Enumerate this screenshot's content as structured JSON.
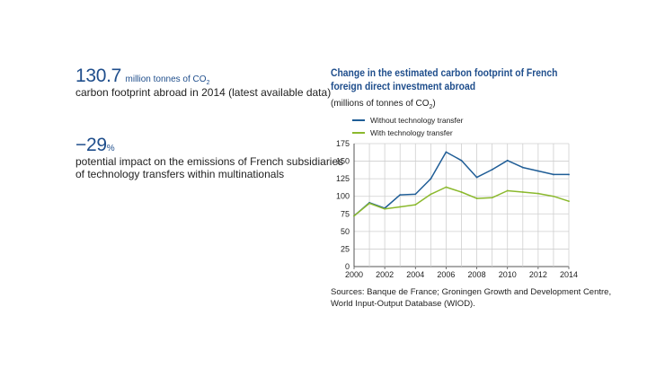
{
  "stats": [
    {
      "value": "130.7",
      "unit": "million tonnes of CO",
      "unit_sub": "2",
      "text": "carbon footprint abroad in 2014 (latest available data)"
    },
    {
      "value": "−29",
      "unit": "%",
      "text_line1": "potential impact on the emissions of French subsidiaries",
      "text_line2": "of technology transfers within multinationals"
    }
  ],
  "chart_data": {
    "type": "line",
    "title": "Change in the estimated carbon footprint of French foreign direct investment abroad",
    "ylabel": "(millions of tonnes of CO",
    "ylabel_sub": "2",
    "ylabel_end": ")",
    "xlabel": "",
    "x": [
      2000,
      2001,
      2002,
      2003,
      2004,
      2005,
      2006,
      2007,
      2008,
      2009,
      2010,
      2011,
      2012,
      2013,
      2014
    ],
    "series": [
      {
        "name": "Without technology transfer",
        "color": "#1f5d96",
        "values": [
          72,
          91,
          83,
          102,
          103,
          125,
          163,
          151,
          127,
          138,
          151,
          141,
          136,
          131,
          131
        ]
      },
      {
        "name": "With technology transfer",
        "color": "#8bb92d",
        "values": [
          72,
          90,
          82,
          85,
          88,
          103,
          113,
          106,
          97,
          98,
          108,
          106,
          104,
          100,
          93
        ]
      }
    ],
    "ylim": [
      0,
      175
    ],
    "yticks": [
      0,
      25,
      50,
      75,
      100,
      125,
      150,
      175
    ],
    "xticks": [
      2000,
      2002,
      2004,
      2006,
      2008,
      2010,
      2012,
      2014
    ],
    "grid": true
  },
  "source": "Sources: Banque de France; Groningen Growth and Development Centre, World Input-Output Database (WIOD)."
}
